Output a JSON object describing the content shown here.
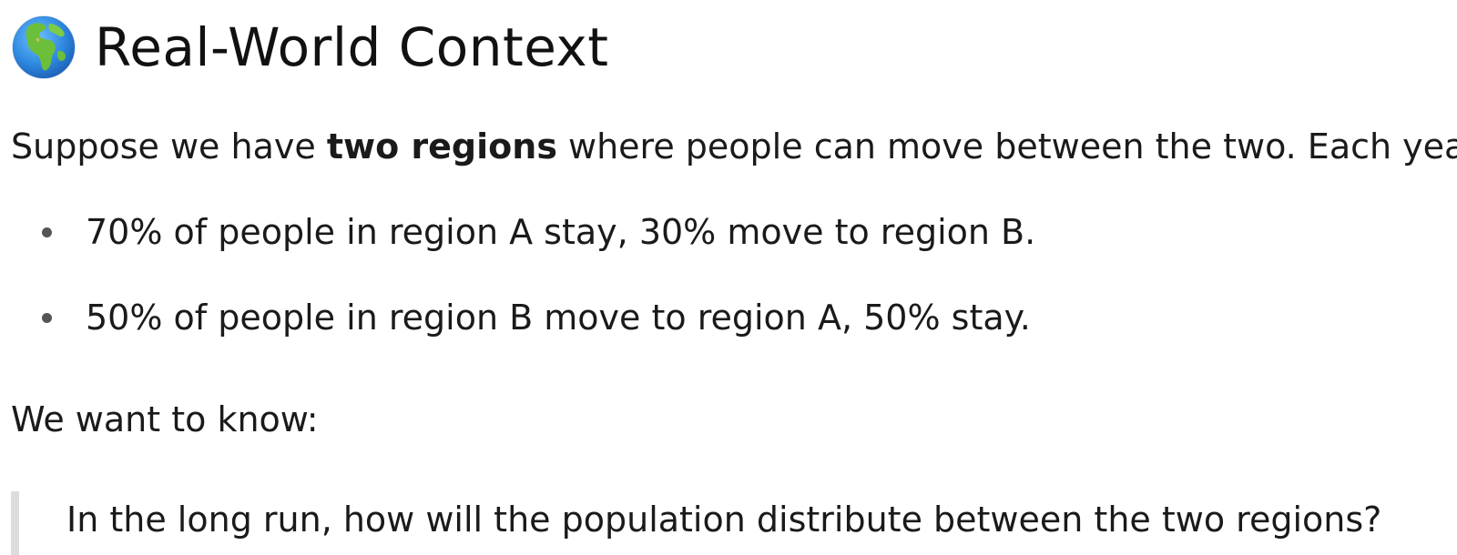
{
  "section": {
    "heading": "Real-World Context",
    "heading_icon": "globe-icon"
  },
  "intro": {
    "before": "Suppose we have ",
    "bold": "two regions",
    "after": " where people can move between the two. Each year:"
  },
  "bullets": [
    "70% of people in region A stay, 30% move to region B.",
    "50% of people in region B move to region A, 50% stay."
  ],
  "question_lead": "We want to know:",
  "quote": "In the long run, how will the population distribute between the two regions?",
  "colors": {
    "text": "#1a1a1a",
    "quote_border": "#dddddd",
    "globe_ocean": "#3b8fe0",
    "globe_land": "#6cbf3a"
  }
}
